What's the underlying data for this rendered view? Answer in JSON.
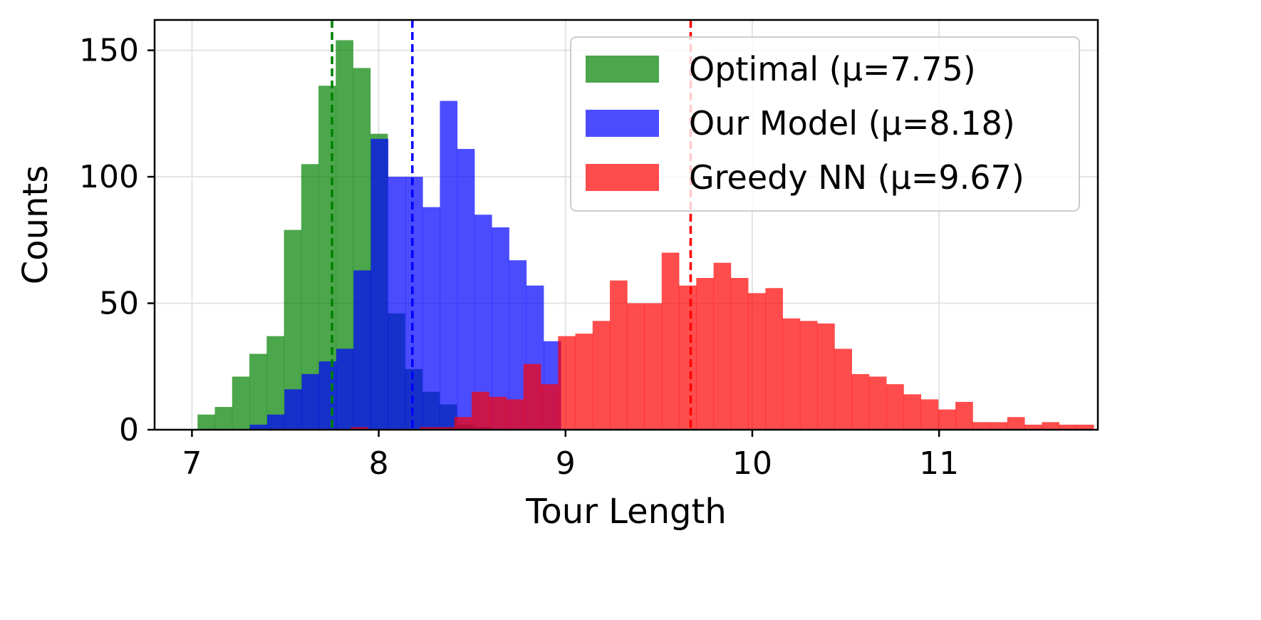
{
  "chart_data": {
    "type": "bar",
    "title": "",
    "xlabel": "Tour Length",
    "ylabel": "Counts",
    "xlim": [
      6.8,
      11.85
    ],
    "ylim": [
      0,
      162
    ],
    "xticks": [
      7,
      8,
      9,
      10,
      11
    ],
    "yticks": [
      0,
      50,
      100,
      150
    ],
    "grid": true,
    "legend_position": "top-right",
    "bar_opacity": 0.7,
    "series": [
      {
        "name": "Optimal (μ=7.75)",
        "color": "#008000",
        "mean": 7.75,
        "bin_width": 0.0925,
        "x_start": 7.03,
        "counts": [
          6,
          9,
          21,
          30,
          37,
          79,
          105,
          136,
          154,
          143,
          117,
          46,
          24,
          15,
          10,
          2,
          1
        ]
      },
      {
        "name": "Our Model (μ=8.18)",
        "color": "#0000ff",
        "mean": 8.18,
        "bin_width": 0.0925,
        "x_start": 7.31,
        "counts": [
          2,
          6,
          16,
          22,
          27,
          32,
          63,
          115,
          100,
          100,
          88,
          130,
          111,
          85,
          80,
          67,
          57,
          35
        ]
      },
      {
        "name": "Greedy NN (μ=9.67)",
        "color": "#ff0000",
        "mean": 9.67,
        "bin_width": 0.0925,
        "x_start": 7.85,
        "counts": [
          1,
          0,
          0,
          0,
          1,
          1,
          5,
          15,
          13,
          12,
          26,
          18,
          37,
          38,
          43,
          59,
          50,
          50,
          70,
          57,
          60,
          66,
          60,
          54,
          56,
          44,
          43,
          42,
          32,
          22,
          21,
          18,
          14,
          12,
          8,
          11,
          3,
          3,
          5,
          2,
          3,
          2,
          2
        ]
      }
    ]
  }
}
